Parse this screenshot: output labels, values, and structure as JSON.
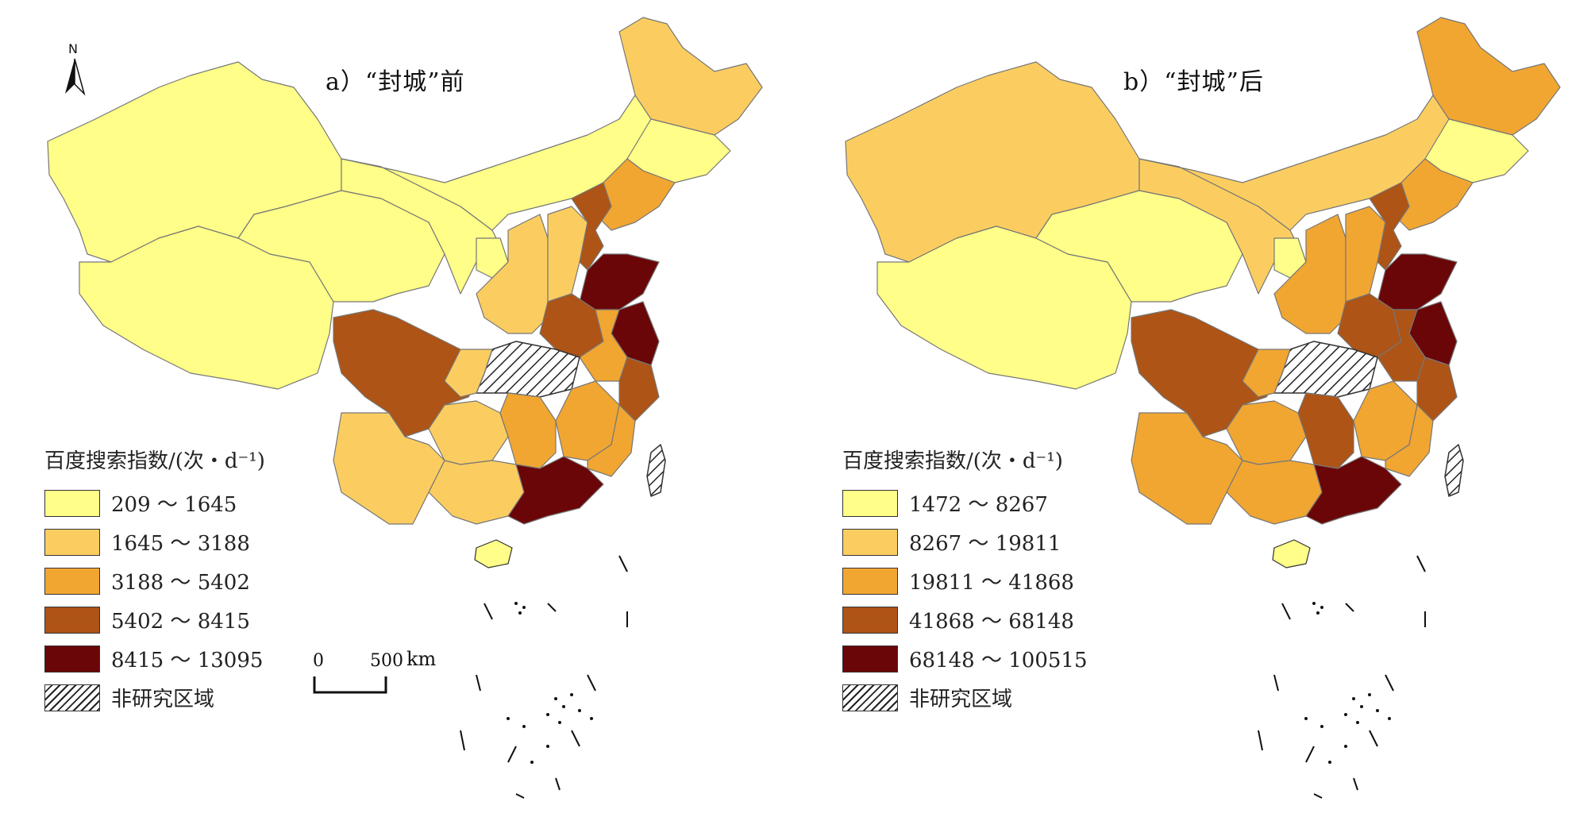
{
  "colors": {
    "c1": "#fefe88",
    "c2": "#fbcd60",
    "c3": "#f1a632",
    "c4": "#ad5416",
    "c5": "#6a0608",
    "border": "#777777"
  },
  "north_arrow": {
    "label": "N",
    "icon": "north-arrow-icon"
  },
  "scale_bar": {
    "zero_label": "0",
    "value_label": "500",
    "unit_label": "km"
  },
  "panels": [
    {
      "title": "a）“封城”前",
      "legend": {
        "title": "百度搜索指数/(次・d⁻¹)",
        "classes": [
          {
            "label": "209 ～ 1645",
            "color": "#fefe88"
          },
          {
            "label": "1645 ～ 3188",
            "color": "#fbcd60"
          },
          {
            "label": "3188 ～ 5402",
            "color": "#f1a632"
          },
          {
            "label": "5402 ～ 8415",
            "color": "#ad5416"
          },
          {
            "label": "8415 ～ 13095",
            "color": "#6a0608"
          }
        ],
        "no_data_label": "非研究区域"
      }
    },
    {
      "title": "b）“封城”后",
      "legend": {
        "title": "百度搜索指数/(次・d⁻¹)",
        "classes": [
          {
            "label": "1472 ～ 8267",
            "color": "#fefe88"
          },
          {
            "label": "8267 ～ 19811",
            "color": "#fbcd60"
          },
          {
            "label": "19811 ～ 41868",
            "color": "#f1a632"
          },
          {
            "label": "41868 ～ 68148",
            "color": "#ad5416"
          },
          {
            "label": "68148 ～ 100515",
            "color": "#6a0608"
          }
        ],
        "no_data_label": "非研究区域"
      }
    }
  ]
}
